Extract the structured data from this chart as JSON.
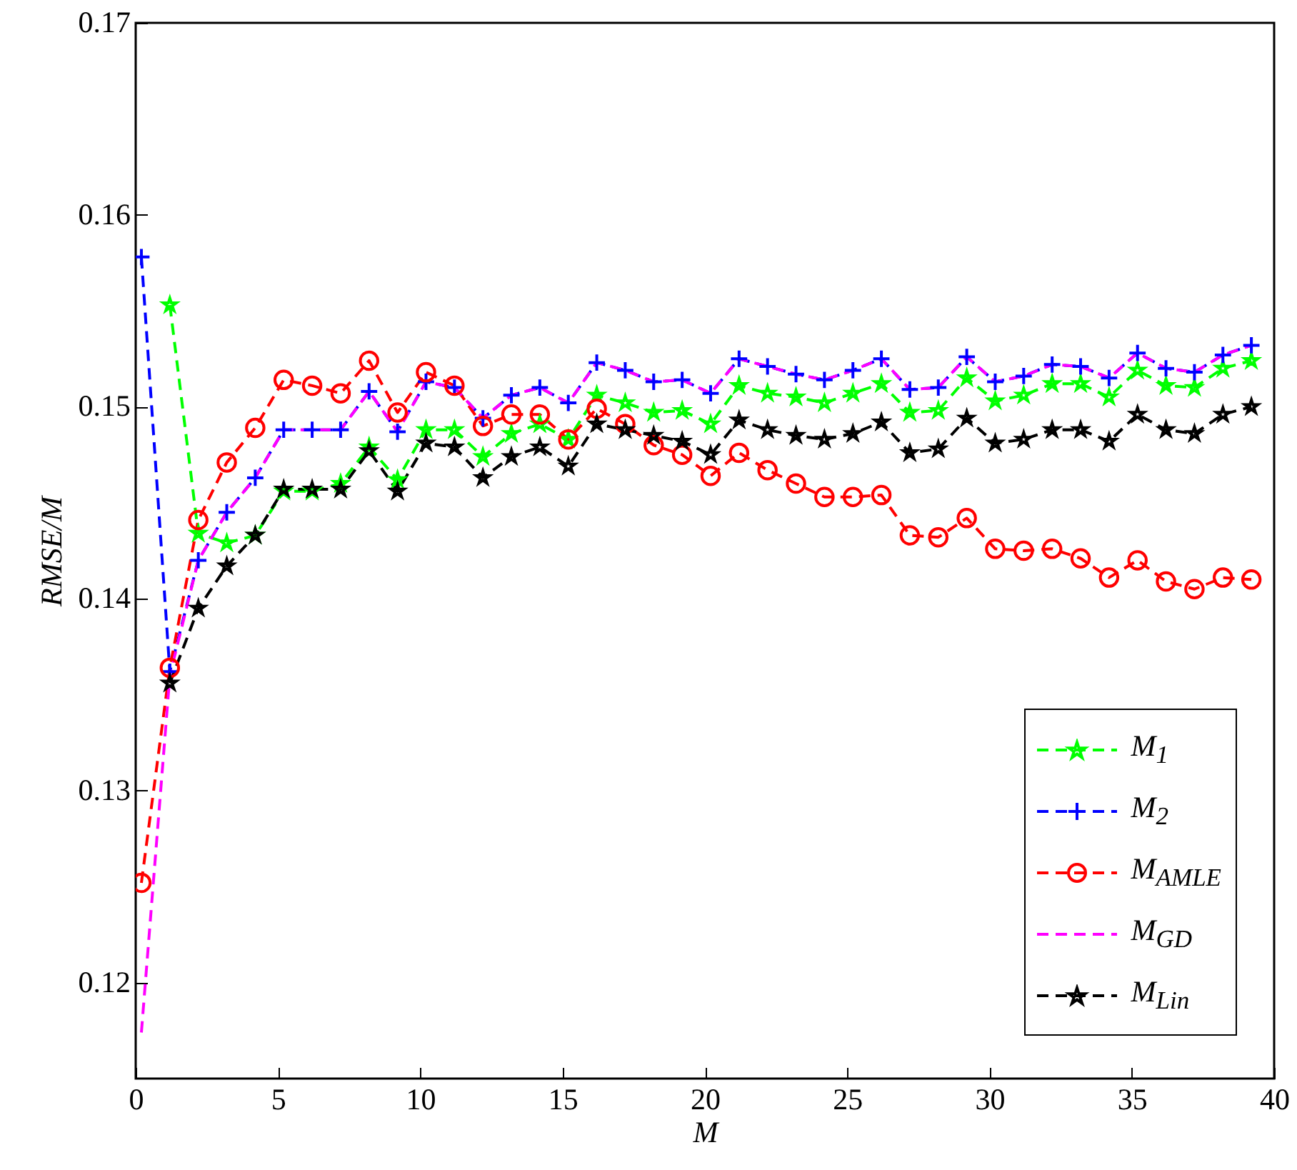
{
  "chart_data": {
    "type": "line",
    "xlabel": "M",
    "ylabel": "RMSE/M",
    "xlim": [
      0,
      40
    ],
    "ylim": [
      0.115,
      0.17
    ],
    "xticks": [
      0,
      5,
      10,
      15,
      20,
      25,
      30,
      35,
      40
    ],
    "yticks": [
      0.12,
      0.13,
      0.14,
      0.15,
      0.16,
      0.17
    ],
    "legend": "bottom right",
    "x": [
      0.2,
      1.2,
      2.2,
      3.2,
      4.2,
      5.2,
      6.2,
      7.2,
      8.2,
      9.2,
      10.2,
      11.2,
      12.2,
      13.2,
      14.2,
      15.2,
      16.2,
      17.2,
      18.2,
      19.2,
      20.2,
      21.2,
      22.2,
      23.2,
      24.2,
      25.2,
      26.2,
      27.2,
      28.2,
      29.2,
      30.2,
      31.2,
      32.2,
      33.2,
      34.2,
      35.2,
      36.2,
      37.2,
      38.2,
      39.2
    ],
    "series": [
      {
        "name": "M$_{1}$",
        "color": "#00ff00",
        "marker": "star",
        "line_style": "dashed",
        "values": [
          null,
          0.1553,
          0.1434,
          0.1429,
          0.1433,
          0.1456,
          0.1456,
          0.146,
          0.1479,
          0.1462,
          0.1488,
          0.1488,
          0.1474,
          0.1486,
          0.1491,
          0.1483,
          0.1506,
          0.1502,
          0.1497,
          0.1498,
          0.1491,
          0.1511,
          0.1507,
          0.1505,
          0.1502,
          0.1507,
          0.1512,
          0.1497,
          0.1498,
          0.1515,
          0.1503,
          0.1506,
          0.1512,
          0.1512,
          0.1505,
          0.1519,
          0.1511,
          0.151,
          0.152,
          0.1524
        ]
      },
      {
        "name": "M$_{2}$",
        "color": "#0000ff",
        "marker": "cross",
        "line_style": "dashed",
        "values": [
          0.1578,
          0.1362,
          0.142,
          0.1445,
          0.1463,
          0.1488,
          0.1488,
          0.1488,
          0.1508,
          0.1487,
          0.1513,
          0.151,
          0.1494,
          0.1506,
          0.151,
          0.1502,
          0.1523,
          0.1519,
          0.1513,
          0.1514,
          0.1507,
          0.1525,
          0.1521,
          0.1517,
          0.1514,
          0.1519,
          0.1525,
          0.1509,
          0.151,
          0.1526,
          0.1513,
          0.1516,
          0.1522,
          0.1521,
          0.1515,
          0.1528,
          0.152,
          0.1518,
          0.1527,
          0.1532
        ]
      },
      {
        "name": "M$_{AMLE}$",
        "color": "#ff0000",
        "marker": "circle",
        "line_style": "dashed",
        "values": [
          0.1252,
          0.1364,
          0.1441,
          0.1471,
          0.1489,
          0.1514,
          0.1511,
          0.1507,
          0.1524,
          0.1497,
          0.1518,
          0.1511,
          0.149,
          0.1496,
          0.1496,
          0.1483,
          0.1499,
          0.1491,
          0.148,
          0.1475,
          0.1464,
          0.1476,
          0.1467,
          0.146,
          0.1453,
          0.1453,
          0.1454,
          0.1433,
          0.1432,
          0.1442,
          0.1426,
          0.1425,
          0.1426,
          0.1421,
          0.1411,
          0.142,
          0.1409,
          0.1405,
          0.1411,
          0.141
        ]
      },
      {
        "name": "M$_{GD}$",
        "color": "#ff00ff",
        "marker": "none",
        "line_style": "dashed",
        "values": [
          0.1174,
          0.136,
          0.142,
          0.1445,
          0.1463,
          0.1488,
          0.1488,
          0.1488,
          0.1508,
          0.1487,
          0.1513,
          0.151,
          0.1494,
          0.1506,
          0.151,
          0.1502,
          0.1523,
          0.1519,
          0.1513,
          0.1514,
          0.1507,
          0.1525,
          0.1521,
          0.1517,
          0.1514,
          0.1519,
          0.1525,
          0.1509,
          0.151,
          0.1526,
          0.1513,
          0.1516,
          0.1522,
          0.1521,
          0.1515,
          0.1528,
          0.152,
          0.1518,
          0.1527,
          0.1532
        ]
      },
      {
        "name": "M$_{Lin}$",
        "color": "#000000",
        "marker": "star",
        "line_style": "dashed",
        "values": [
          null,
          0.1356,
          0.1395,
          0.1417,
          0.1433,
          0.1457,
          0.1457,
          0.1457,
          0.1477,
          0.1456,
          0.1481,
          0.1479,
          0.1463,
          0.1474,
          0.1479,
          0.1469,
          0.1491,
          0.1488,
          0.1485,
          0.1482,
          0.1475,
          0.1493,
          0.1488,
          0.1485,
          0.1483,
          0.1486,
          0.1492,
          0.1476,
          0.1478,
          0.1494,
          0.1481,
          0.1483,
          0.1488,
          0.1488,
          0.1482,
          0.1496,
          0.1488,
          0.1486,
          0.1496,
          0.15
        ]
      }
    ]
  }
}
